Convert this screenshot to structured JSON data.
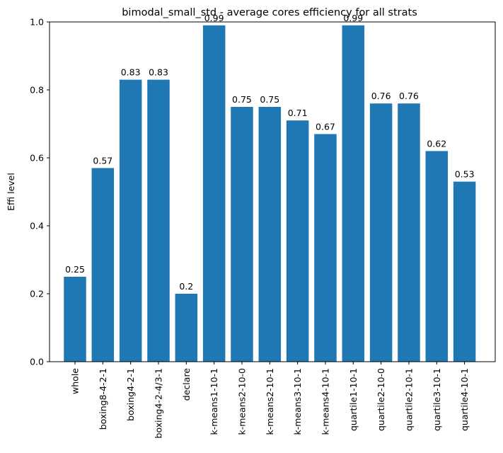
{
  "chart_data": {
    "type": "bar",
    "title": "bimodal_small_std - average cores efficiency for all strats",
    "xlabel": "",
    "ylabel": "Effi level",
    "ylim": [
      0,
      1.0
    ],
    "yticks": [
      "0.0",
      "0.2",
      "0.4",
      "0.6",
      "0.8",
      "1.0"
    ],
    "grid": false,
    "bar_color": "#1f77b4",
    "categories": [
      "whole",
      "boxing8-4-2-1",
      "boxing4-2-1",
      "boxing4-2-4/3-1",
      "declare",
      "k-means1-10-1",
      "k-means2-10-0",
      "k-means2-10-1",
      "k-means3-10-1",
      "k-means4-10-1",
      "quartile1-10-1",
      "quartile2-10-0",
      "quartile2-10-1",
      "quartile3-10-1",
      "quartile4-10-1"
    ],
    "values": [
      0.25,
      0.57,
      0.83,
      0.83,
      0.2,
      0.99,
      0.75,
      0.75,
      0.71,
      0.67,
      0.99,
      0.76,
      0.76,
      0.62,
      0.53
    ],
    "data_labels": [
      "0.25",
      "0.57",
      "0.83",
      "0.83",
      "0.2",
      "0.99",
      "0.75",
      "0.75",
      "0.71",
      "0.67",
      "0.99",
      "0.76",
      "0.76",
      "0.62",
      "0.53"
    ]
  }
}
